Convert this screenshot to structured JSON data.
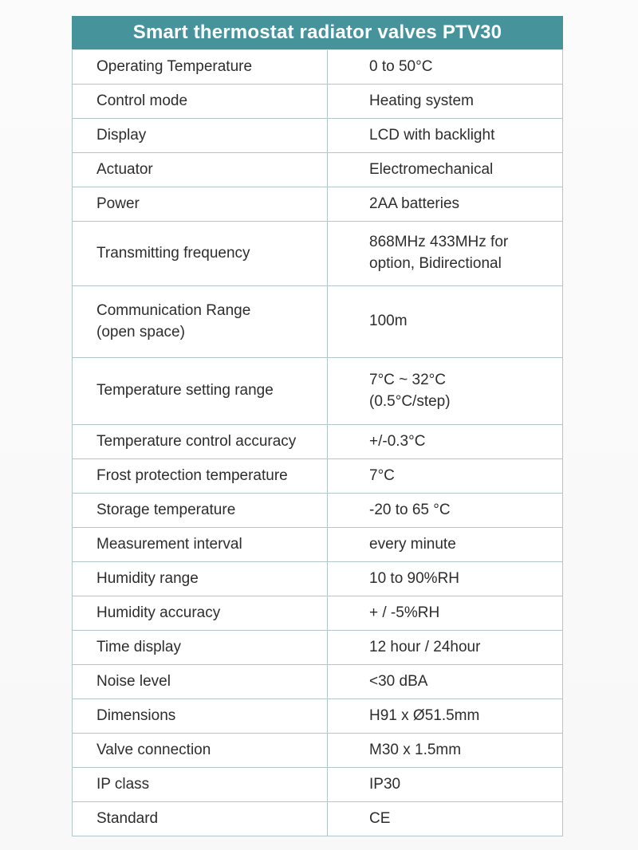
{
  "table": {
    "title": "Smart thermostat radiator valves PTV30",
    "rows": [
      {
        "label": "Operating Temperature",
        "value": "0 to 50°C"
      },
      {
        "label": "Control mode",
        "value": "Heating system"
      },
      {
        "label": "Display",
        "value": "LCD with backlight"
      },
      {
        "label": "Actuator",
        "value": "Electromechanical"
      },
      {
        "label": "Power",
        "value": "2AA batteries"
      },
      {
        "label": "Transmitting frequency",
        "value": "868MHz 433MHz for\noption, Bidirectional"
      },
      {
        "label": "Communication Range\n(open space)",
        "value": "100m"
      },
      {
        "label": "Temperature setting range",
        "value": "7°C ~ 32°C\n(0.5°C/step)"
      },
      {
        "label": "Temperature control accuracy",
        "value": "+/-0.3°C"
      },
      {
        "label": "Frost protection temperature",
        "value": "7°C"
      },
      {
        "label": "Storage temperature",
        "value": "-20 to 65 °C"
      },
      {
        "label": "Measurement interval",
        "value": "every minute"
      },
      {
        "label": "Humidity range",
        "value": "10 to 90%RH"
      },
      {
        "label": "Humidity accuracy",
        "value": "+ / -5%RH"
      },
      {
        "label": "Time display",
        "value": "12 hour / 24hour"
      },
      {
        "label": "Noise level",
        "value": "<30 dBA"
      },
      {
        "label": "Dimensions",
        "value": "H91 x Ø51.5mm"
      },
      {
        "label": "Valve connection",
        "value": "M30 x 1.5mm"
      },
      {
        "label": "IP class",
        "value": "IP30"
      },
      {
        "label": "Standard",
        "value": "CE"
      }
    ],
    "colors": {
      "header_bg": "#46939c",
      "header_text": "#ffffff",
      "border": "#b2c6c9",
      "text": "#2d2d2d",
      "page_bg": "#fafafa"
    }
  }
}
